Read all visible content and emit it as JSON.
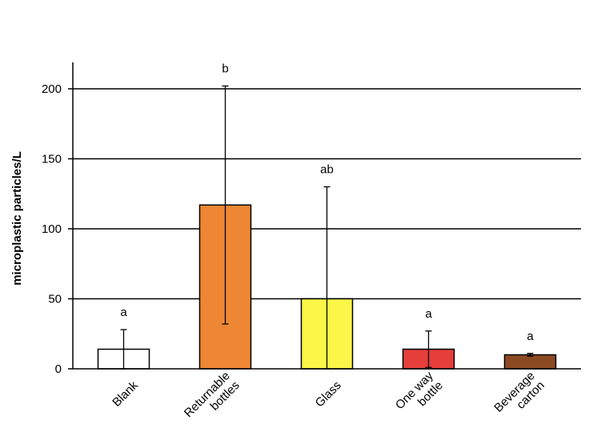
{
  "chart_data": {
    "type": "bar",
    "ylabel": "microplastic particles/L",
    "ylim": [
      0,
      200
    ],
    "yticks": [
      0,
      50,
      100,
      150,
      200
    ],
    "grid": "horizontal",
    "categories": [
      {
        "lines": [
          "Blank"
        ]
      },
      {
        "lines": [
          "Returnable",
          "bottles"
        ]
      },
      {
        "lines": [
          "Glass"
        ]
      },
      {
        "lines": [
          "One way",
          "bottle"
        ]
      },
      {
        "lines": [
          "Beverage",
          "carton"
        ]
      }
    ],
    "values": [
      14,
      117,
      50,
      14,
      10
    ],
    "error": [
      14,
      85,
      80,
      13,
      1
    ],
    "significance": [
      "a",
      "b",
      "ab",
      "a",
      "a"
    ],
    "colors": [
      "#ffffff",
      "#ee8734",
      "#fbf647",
      "#e53e3b",
      "#8c4a22"
    ]
  }
}
